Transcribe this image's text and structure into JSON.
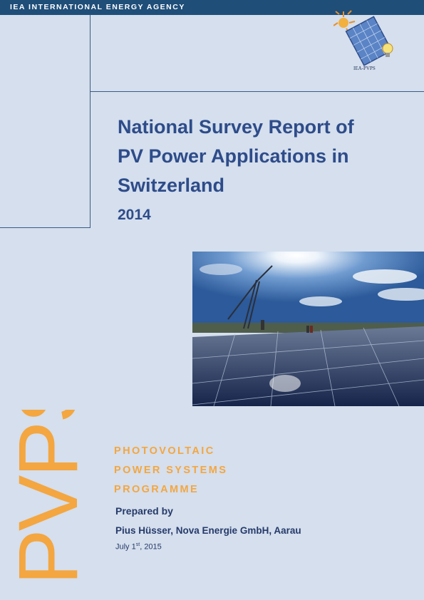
{
  "header": {
    "agency": "IEA INTERNATIONAL ENERGY AGENCY"
  },
  "logo": {
    "text": "IEA-PVPS",
    "icon": "iea-pvps-logo"
  },
  "report": {
    "title_lines": [
      "National Survey Report of",
      "PV Power Applications in",
      "Switzerland"
    ],
    "year": "2014"
  },
  "photo": {
    "icon": "solar-panels-photo"
  },
  "programme": {
    "big_letters": "PVPS",
    "lines": [
      "PHOTOVOLTAIC",
      "POWER SYSTEMS",
      "PROGRAMME"
    ]
  },
  "prepared": {
    "label": "Prepared by",
    "author": "Pius Hüsser, Nova Energie GmbH, Aarau",
    "date_prefix": "July 1",
    "date_sup": "st",
    "date_suffix": ", 2015"
  },
  "colors": {
    "header": "#1f4e79",
    "background": "#d5dfed",
    "title": "#2e4c8a",
    "accent": "#f4a640"
  }
}
